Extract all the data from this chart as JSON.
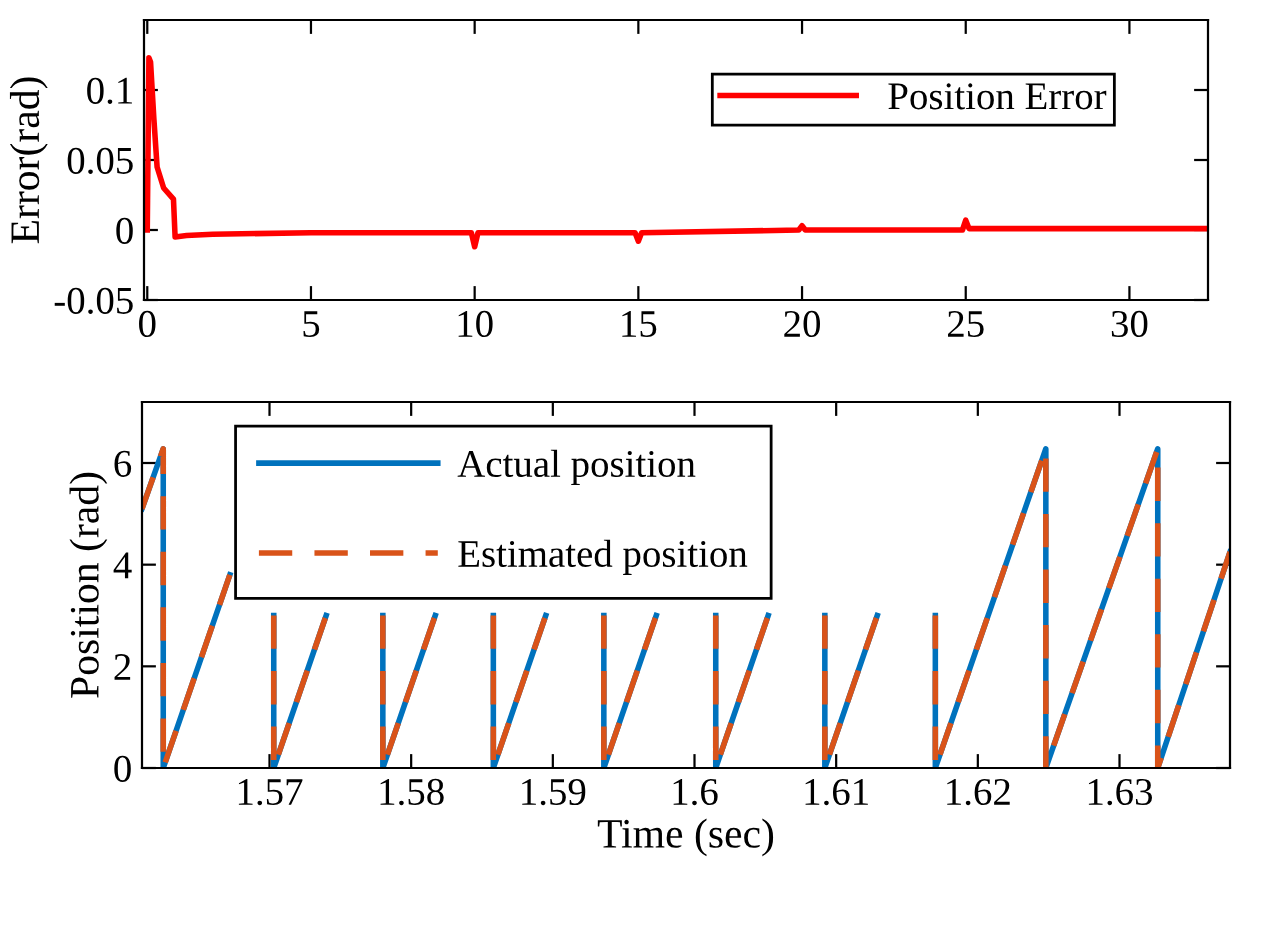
{
  "chart_data": [
    {
      "type": "line",
      "ylabel": "Error(rad)",
      "xlim": [
        -0.1,
        32.4
      ],
      "ylim": [
        -0.05,
        0.15
      ],
      "xticks": [
        0,
        5,
        10,
        15,
        20,
        25,
        30
      ],
      "yticks": [
        -0.05,
        0,
        0.05,
        0.1
      ],
      "legend": "top right",
      "grid": false,
      "line_style": "solid",
      "marker": "none",
      "series": [
        {
          "name": "Position Error",
          "color": "#ff0000",
          "x": [
            0,
            0.05,
            0.1,
            0.2,
            0.3,
            0.5,
            0.8,
            0.85,
            1.2,
            2,
            5,
            9.9,
            10,
            10.1,
            14.9,
            15,
            15.1,
            19.9,
            20,
            20.1,
            24.9,
            25,
            25.1,
            32.4
          ],
          "values": [
            0,
            0.123,
            0.12,
            0.08,
            0.045,
            0.03,
            0.022,
            -0.005,
            -0.004,
            -0.003,
            -0.002,
            -0.002,
            -0.012,
            -0.002,
            -0.002,
            -0.008,
            -0.002,
            0,
            0.003,
            0,
            0,
            0.007,
            0.001,
            0.001
          ]
        }
      ]
    },
    {
      "type": "line",
      "xlabel": "Time (sec)",
      "ylabel": "Position (rad)",
      "xlim": [
        1.561,
        1.6378
      ],
      "ylim": [
        0,
        7.2
      ],
      "xticks": [
        1.57,
        1.58,
        1.59,
        1.6,
        1.61,
        1.62,
        1.63
      ],
      "yticks": [
        0,
        2,
        4,
        6
      ],
      "legend": "top left",
      "grid": false,
      "marker": "none",
      "series": [
        {
          "name": "Actual position",
          "color": "#0072bd",
          "line_style": "solid",
          "x": [
            1.561,
            1.5625,
            1.5625,
            1.5672,
            null,
            1.5703,
            1.5703,
            1.574,
            null,
            1.578,
            1.578,
            1.5817,
            null,
            1.5858,
            1.5858,
            1.5895,
            null,
            1.5936,
            1.5936,
            1.5973,
            null,
            1.6015,
            1.6015,
            1.6052,
            null,
            1.6092,
            1.6092,
            1.6129,
            null,
            1.617,
            1.617,
            1.6248,
            1.6248,
            1.6327,
            1.6327,
            1.6378
          ],
          "values": [
            5.1,
            6.28,
            0,
            3.8,
            null,
            3.0,
            0,
            3.0,
            null,
            3.0,
            0,
            3.0,
            null,
            3.0,
            0,
            3.0,
            null,
            3.0,
            0,
            3.0,
            null,
            3.0,
            0,
            3.0,
            null,
            3.0,
            0,
            3.0,
            null,
            3.0,
            0,
            6.28,
            0,
            6.28,
            0,
            4.25
          ]
        },
        {
          "name": "Estimated position",
          "color": "#d95319",
          "line_style": "dashed",
          "x": [
            1.561,
            1.5625,
            1.5625,
            1.5672,
            null,
            1.5703,
            1.5703,
            1.574,
            null,
            1.578,
            1.578,
            1.5817,
            null,
            1.5858,
            1.5858,
            1.5895,
            null,
            1.5936,
            1.5936,
            1.5973,
            null,
            1.6015,
            1.6015,
            1.6052,
            null,
            1.6092,
            1.6092,
            1.6129,
            null,
            1.617,
            1.617,
            1.6248,
            1.6248,
            1.6327,
            1.6327,
            1.6378
          ],
          "values": [
            5.1,
            6.28,
            0,
            3.8,
            null,
            3.0,
            0,
            3.0,
            null,
            3.0,
            0,
            3.0,
            null,
            3.0,
            0,
            3.0,
            null,
            3.0,
            0,
            3.0,
            null,
            3.0,
            0,
            3.0,
            null,
            3.0,
            0,
            3.0,
            null,
            3.0,
            0,
            6.28,
            0,
            6.28,
            0,
            4.25
          ]
        }
      ]
    }
  ]
}
